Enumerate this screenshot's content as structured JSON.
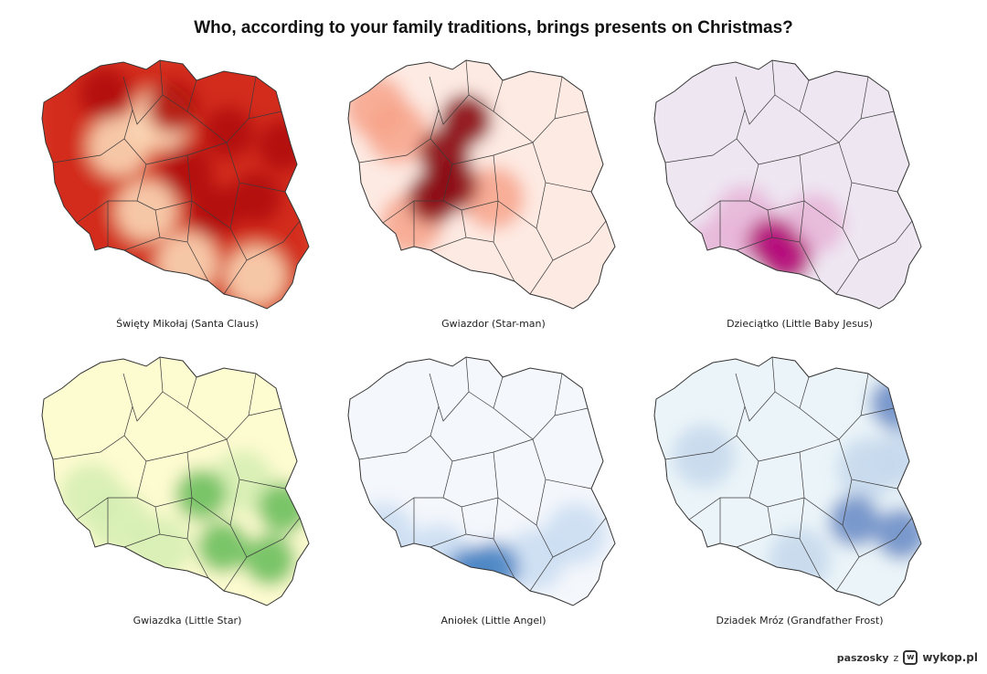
{
  "title": "Who, according to your family traditions, brings presents on Christmas?",
  "maps": [
    {
      "label": "Święty Mikołaj (Santa Claus)",
      "base_color": "#c7180f",
      "background_fill": "#e5512c",
      "hotspot_color": "#b01109",
      "light_color": "#fde2c0",
      "hotspots": [
        [
          0.5,
          0.2
        ],
        [
          0.7,
          0.3
        ],
        [
          0.8,
          0.55
        ],
        [
          0.65,
          0.6
        ],
        [
          0.25,
          0.15
        ],
        [
          0.9,
          0.35
        ],
        [
          0.55,
          0.45
        ]
      ],
      "lights": [
        [
          0.3,
          0.35
        ],
        [
          0.45,
          0.25
        ],
        [
          0.4,
          0.6
        ],
        [
          0.55,
          0.8
        ],
        [
          0.8,
          0.85
        ]
      ]
    },
    {
      "label": "Gwiazdor (Star-man)",
      "base_color": "#fde8df",
      "background_fill": "#fdeee8",
      "hotspot_color": "#8a0812",
      "light_color": "#f7a38a",
      "hotspots": [
        [
          0.37,
          0.38
        ],
        [
          0.45,
          0.25
        ],
        [
          0.4,
          0.5
        ],
        [
          0.33,
          0.55
        ]
      ],
      "lights": [
        [
          0.2,
          0.3
        ],
        [
          0.25,
          0.65
        ],
        [
          0.55,
          0.55
        ],
        [
          0.12,
          0.2
        ]
      ]
    },
    {
      "label": "Dzieciątko (Little Baby Jesus)",
      "base_color": "#eee6f2",
      "background_fill": "#efe9f4",
      "hotspot_color": "#b5107a",
      "light_color": "#e8b4d7",
      "hotspots": [
        [
          0.45,
          0.72
        ],
        [
          0.5,
          0.78
        ]
      ],
      "lights": [
        [
          0.35,
          0.62
        ],
        [
          0.25,
          0.75
        ],
        [
          0.6,
          0.65
        ]
      ]
    },
    {
      "label": "Gwiazdka (Little Star)",
      "base_color": "#fefbcf",
      "background_fill": "#fdfbd2",
      "hotspot_color": "#6cbf5d",
      "light_color": "#d4edb3",
      "hotspots": [
        [
          0.68,
          0.75
        ],
        [
          0.85,
          0.8
        ],
        [
          0.6,
          0.55
        ],
        [
          0.9,
          0.6
        ]
      ],
      "lights": [
        [
          0.3,
          0.65
        ],
        [
          0.2,
          0.55
        ],
        [
          0.45,
          0.75
        ],
        [
          0.75,
          0.5
        ]
      ]
    },
    {
      "label": "Aniołek (Little Angel)",
      "base_color": "#f3f6fc",
      "background_fill": "#f5f7fc",
      "hotspot_color": "#4a85c4",
      "light_color": "#c9ddf1",
      "hotspots": [
        [
          0.47,
          0.85
        ],
        [
          0.55,
          0.83
        ]
      ],
      "lights": [
        [
          0.7,
          0.8
        ],
        [
          0.85,
          0.7
        ],
        [
          0.15,
          0.7
        ],
        [
          0.35,
          0.78
        ]
      ]
    },
    {
      "label": "Dziadek Mróz (Grandfather Frost)",
      "base_color": "#eaf4f8",
      "background_fill": "#edf5f9",
      "hotspot_color": "#6d8fc7",
      "light_color": "#c4d7ec",
      "hotspots": [
        [
          0.9,
          0.2
        ],
        [
          0.92,
          0.7
        ],
        [
          0.75,
          0.65
        ]
      ],
      "lights": [
        [
          0.8,
          0.45
        ],
        [
          0.55,
          0.8
        ],
        [
          0.2,
          0.4
        ],
        [
          0.95,
          0.4
        ]
      ]
    }
  ],
  "credit": {
    "user": "paszosky",
    "separator": "z",
    "logo": "w",
    "site": "wykop.pl"
  }
}
